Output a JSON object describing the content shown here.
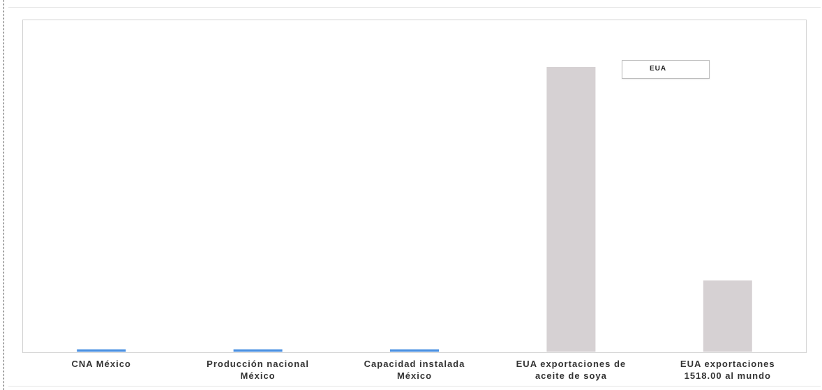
{
  "chart_data": {
    "type": "bar",
    "title": "",
    "xlabel": "",
    "ylabel": "",
    "ylim": [
      0,
      100
    ],
    "categories": [
      [
        "CNA México"
      ],
      [
        "Producción nacional",
        "México"
      ],
      [
        "Capacidad instalada",
        "México"
      ],
      [
        "EUA exportaciones de",
        "aceite de soya"
      ],
      [
        "EUA exportaciones",
        "1518.00 al mundo"
      ]
    ],
    "values": [
      0.8,
      0.8,
      0.8,
      100,
      25
    ],
    "bar_colors": [
      "#4a90e2",
      "#4a90e2",
      "#4a90e2",
      "#d6d1d3",
      "#d6d1d3"
    ],
    "legend": {
      "label": "EUA",
      "placement": "top-right"
    },
    "grid": false
  }
}
